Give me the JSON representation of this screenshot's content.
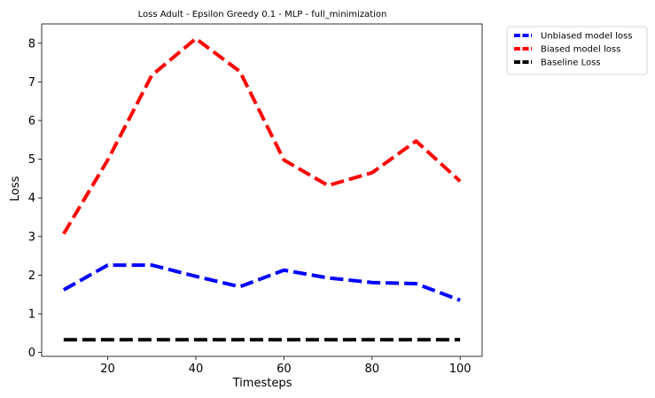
{
  "chart_data": {
    "type": "line",
    "title": "Loss Adult - Epsilon Greedy 0.1 - MLP - full_minimization",
    "xlabel": "Timesteps",
    "ylabel": "Loss",
    "x": [
      10,
      20,
      30,
      40,
      50,
      60,
      70,
      80,
      90,
      100
    ],
    "xlim": [
      5,
      105
    ],
    "ylim": [
      -0.1,
      8.5
    ],
    "xticks": [
      20,
      40,
      60,
      80,
      100
    ],
    "yticks": [
      0,
      1,
      2,
      3,
      4,
      5,
      6,
      7,
      8
    ],
    "grid": false,
    "legend_position": "outside-top-right",
    "series": [
      {
        "name": "Unbiased model loss",
        "color": "#0000ff",
        "style": "dashed",
        "values": [
          1.62,
          2.26,
          2.26,
          1.97,
          1.7,
          2.13,
          1.93,
          1.81,
          1.78,
          1.35
        ]
      },
      {
        "name": "Biased model loss",
        "color": "#ff0000",
        "style": "dashed",
        "values": [
          3.07,
          4.98,
          7.17,
          8.12,
          7.27,
          4.98,
          4.32,
          4.65,
          5.47,
          4.43
        ]
      },
      {
        "name": "Baseline Loss",
        "color": "#000000",
        "style": "dashed",
        "values": [
          0.33,
          0.33,
          0.33,
          0.33,
          0.33,
          0.33,
          0.33,
          0.33,
          0.33,
          0.33
        ]
      }
    ]
  }
}
